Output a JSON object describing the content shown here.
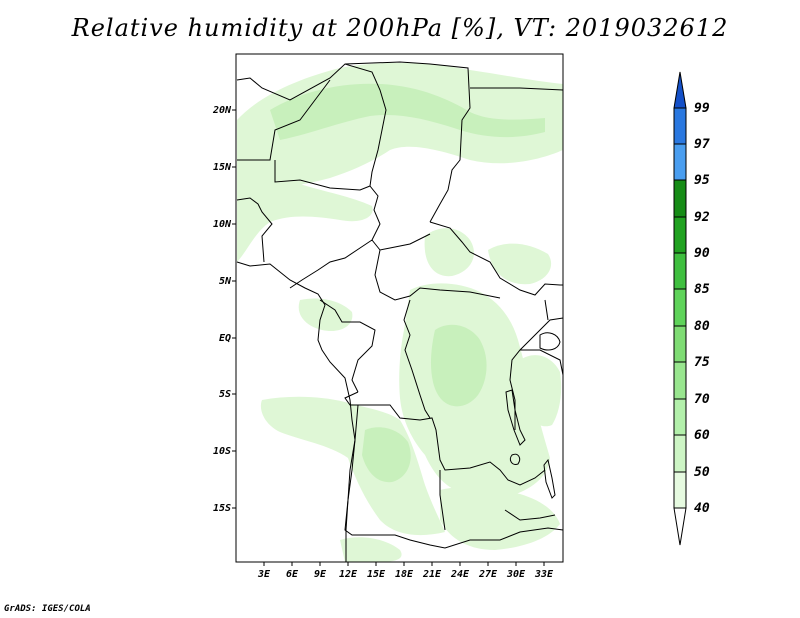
{
  "title": "Relative humidity at 200hPa [%], VT: 2019032612",
  "credit": "GrADS: IGES/COLA",
  "map": {
    "lon_range": [
      0,
      35
    ],
    "lat_range": [
      -20,
      25
    ],
    "lon_ticks": [
      "3E",
      "6E",
      "9E",
      "12E",
      "15E",
      "18E",
      "21E",
      "24E",
      "27E",
      "30E",
      "33E"
    ],
    "lat_ticks": [
      "20N",
      "15N",
      "10N",
      "5N",
      "EQ",
      "5S",
      "10S",
      "15S"
    ],
    "variable": "Relative humidity",
    "level": "200hPa",
    "units": "%"
  },
  "colorbar": {
    "levels": [
      "40",
      "50",
      "60",
      "70",
      "75",
      "80",
      "85",
      "90",
      "92",
      "95",
      "97",
      "99"
    ],
    "colors": [
      "#ffffff",
      "#e6fae0",
      "#cdf5c5",
      "#b3f0ab",
      "#99e68f",
      "#7fdc74",
      "#5fd35a",
      "#3fbf3f",
      "#21a221",
      "#168c16",
      "#4a9ef0",
      "#2a78e0",
      "#1450c8"
    ]
  }
}
